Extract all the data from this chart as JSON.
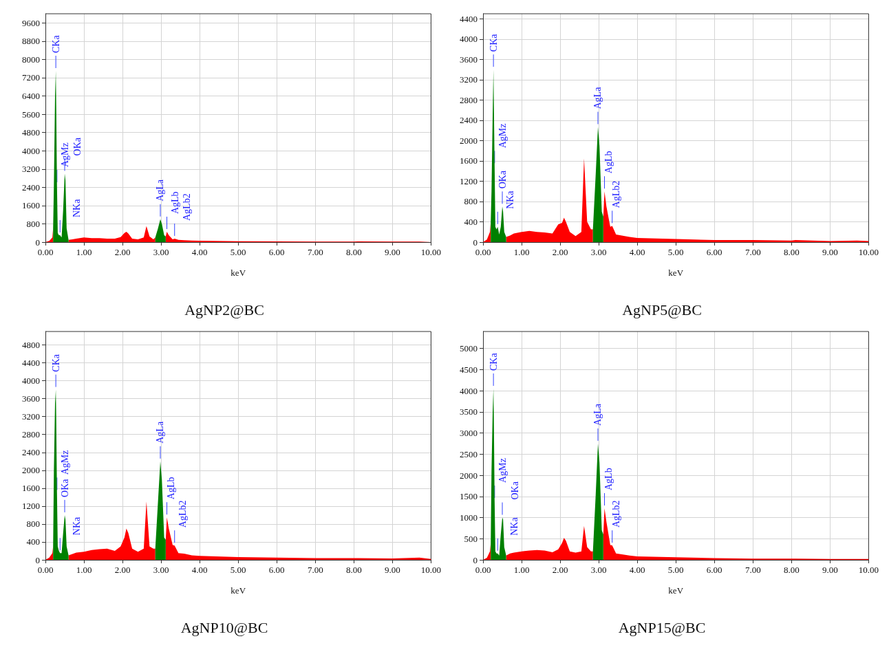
{
  "chart_data": [
    {
      "type": "area",
      "title": "AgNP2@BC",
      "xlabel": "keV",
      "grid": true,
      "x": [
        0,
        0.1,
        0.18,
        0.2,
        0.22,
        0.25,
        0.27,
        0.28,
        0.3,
        0.32,
        0.35,
        0.38,
        0.42,
        0.46,
        0.5,
        0.52,
        0.55,
        0.6,
        0.7,
        0.8,
        1.0,
        1.2,
        1.4,
        1.6,
        1.8,
        1.95,
        2.05,
        2.1,
        2.15,
        2.25,
        2.4,
        2.55,
        2.62,
        2.7,
        2.8,
        2.85,
        2.92,
        2.98,
        3.02,
        3.08,
        3.12,
        3.15,
        3.2,
        3.3,
        3.35,
        3.45,
        3.6,
        3.8,
        4.0,
        5.0,
        6.0,
        7.0,
        8.0,
        8.1,
        9.0,
        9.7,
        10.0
      ],
      "series": [
        {
          "color": "#ff0000",
          "values": [
            0,
            50,
            200,
            600,
            null,
            null,
            null,
            null,
            null,
            null,
            null,
            null,
            null,
            null,
            null,
            null,
            null,
            100,
            120,
            150,
            200,
            170,
            170,
            150,
            150,
            220,
            400,
            450,
            380,
            150,
            120,
            200,
            700,
            250,
            120,
            200,
            null,
            null,
            null,
            null,
            250,
            450,
            300,
            120,
            150,
            100,
            80,
            70,
            60,
            40,
            30,
            20,
            20,
            30,
            20,
            20,
            0
          ]
        },
        {
          "color": "#008000",
          "values": [
            null,
            null,
            null,
            600,
            2500,
            6400,
            7500,
            6000,
            2500,
            400,
            300,
            300,
            200,
            1400,
            3000,
            2700,
            600,
            100,
            null,
            null,
            null,
            null,
            null,
            null,
            null,
            null,
            null,
            null,
            null,
            null,
            null,
            null,
            null,
            null,
            null,
            200,
            600,
            1000,
            800,
            300,
            250,
            null,
            null,
            null,
            null,
            null,
            null,
            null,
            null,
            null,
            null,
            null,
            null,
            null,
            null,
            null,
            null
          ]
        }
      ],
      "xlim": [
        0,
        10
      ],
      "xticks": [
        {
          "value": 0,
          "label": "0.00"
        },
        {
          "value": 1,
          "label": "1.00"
        },
        {
          "value": 2,
          "label": "2.00"
        },
        {
          "value": 3,
          "label": "3.00"
        },
        {
          "value": 4,
          "label": "4.00"
        },
        {
          "value": 5,
          "label": "5.00"
        },
        {
          "value": 6,
          "label": "6.00"
        },
        {
          "value": 7,
          "label": "7.00"
        },
        {
          "value": 8,
          "label": "8.00"
        },
        {
          "value": 9,
          "label": "9.00"
        },
        {
          "value": 10,
          "label": "10.00"
        }
      ],
      "ylim": [
        0,
        10000
      ],
      "yticks": [
        0,
        800,
        1600,
        2400,
        3200,
        4000,
        4800,
        5600,
        6400,
        7200,
        8000,
        8800,
        9600
      ],
      "annotations": [
        {
          "text": "CKa",
          "x": 0.27,
          "y": 7500
        },
        {
          "text": "AgMz",
          "x": 0.3,
          "y": 2500
        },
        {
          "text": "OKa",
          "x": 0.5,
          "y": 3000
        },
        {
          "text": "NKa",
          "x": 0.38,
          "y": 300
        },
        {
          "text": "AgLa",
          "x": 2.98,
          "y": 1000
        },
        {
          "text": "AgLb",
          "x": 3.15,
          "y": 450
        },
        {
          "text": "AgLb2",
          "x": 3.35,
          "y": 150
        }
      ]
    },
    {
      "type": "area",
      "title": "AgNP5@BC",
      "xlabel": "keV",
      "grid": true,
      "x": [
        0,
        0.1,
        0.18,
        0.2,
        0.22,
        0.25,
        0.27,
        0.28,
        0.3,
        0.32,
        0.35,
        0.38,
        0.42,
        0.46,
        0.5,
        0.52,
        0.55,
        0.6,
        0.7,
        0.8,
        1.0,
        1.2,
        1.4,
        1.6,
        1.8,
        1.95,
        2.05,
        2.1,
        2.15,
        2.25,
        2.4,
        2.55,
        2.62,
        2.7,
        2.8,
        2.85,
        2.92,
        2.98,
        3.02,
        3.08,
        3.12,
        3.15,
        3.2,
        3.3,
        3.35,
        3.45,
        3.6,
        3.8,
        4.0,
        5.0,
        6.0,
        7.0,
        8.0,
        8.1,
        9.0,
        9.7,
        10.0
      ],
      "series": [
        {
          "color": "#ff0000",
          "values": [
            0,
            50,
            200,
            400,
            null,
            null,
            null,
            null,
            null,
            null,
            null,
            null,
            null,
            null,
            null,
            null,
            null,
            100,
            130,
            170,
            200,
            220,
            200,
            190,
            170,
            350,
            380,
            480,
            400,
            200,
            120,
            200,
            1650,
            400,
            250,
            250,
            null,
            null,
            null,
            null,
            500,
            1000,
            700,
            300,
            320,
            150,
            130,
            100,
            80,
            60,
            40,
            40,
            30,
            40,
            20,
            30,
            20
          ]
        },
        {
          "color": "#008000",
          "values": [
            null,
            null,
            null,
            400,
            1000,
            2500,
            3400,
            2800,
            1500,
            300,
            250,
            300,
            150,
            300,
            700,
            600,
            200,
            100,
            null,
            null,
            null,
            null,
            null,
            null,
            null,
            null,
            null,
            null,
            null,
            null,
            null,
            null,
            null,
            null,
            null,
            250,
            1300,
            2270,
            1900,
            600,
            500,
            null,
            null,
            null,
            null,
            null,
            null,
            null,
            null,
            null,
            null,
            null,
            null,
            null,
            null,
            null,
            null
          ]
        }
      ],
      "xlim": [
        0,
        10
      ],
      "xticks": [
        {
          "value": 0,
          "label": "0.00"
        },
        {
          "value": 1,
          "label": "1.00"
        },
        {
          "value": 2,
          "label": "2.00"
        },
        {
          "value": 3,
          "label": "3.00"
        },
        {
          "value": 4,
          "label": "4.00"
        },
        {
          "value": 5,
          "label": "5.00"
        },
        {
          "value": 6,
          "label": "6.00"
        },
        {
          "value": 7,
          "label": "7.00"
        },
        {
          "value": 8,
          "label": "8.00"
        },
        {
          "value": 9,
          "label": "9.00"
        },
        {
          "value": 10,
          "label": "10.00"
        }
      ],
      "ylim": [
        0,
        4500
      ],
      "yticks": [
        0,
        400,
        800,
        1200,
        1600,
        2000,
        2400,
        2800,
        3200,
        3600,
        4000,
        4400
      ],
      "annotations": [
        {
          "text": "CKa",
          "x": 0.27,
          "y": 3400
        },
        {
          "text": "AgMz",
          "x": 0.3,
          "y": 1500
        },
        {
          "text": "OKa",
          "x": 0.5,
          "y": 700
        },
        {
          "text": "NKa",
          "x": 0.38,
          "y": 300
        },
        {
          "text": "AgLa",
          "x": 2.98,
          "y": 2270
        },
        {
          "text": "AgLb",
          "x": 3.15,
          "y": 1000
        },
        {
          "text": "AgLb2",
          "x": 3.35,
          "y": 320
        }
      ]
    },
    {
      "type": "area",
      "title": "AgNP10@BC",
      "xlabel": "keV",
      "grid": true,
      "x": [
        0,
        0.1,
        0.18,
        0.2,
        0.22,
        0.25,
        0.27,
        0.28,
        0.3,
        0.32,
        0.35,
        0.38,
        0.42,
        0.46,
        0.5,
        0.52,
        0.55,
        0.6,
        0.7,
        0.8,
        1.0,
        1.2,
        1.4,
        1.6,
        1.8,
        1.95,
        2.05,
        2.1,
        2.15,
        2.25,
        2.4,
        2.55,
        2.62,
        2.7,
        2.8,
        2.85,
        2.92,
        2.98,
        3.02,
        3.08,
        3.12,
        3.15,
        3.2,
        3.3,
        3.35,
        3.45,
        3.6,
        3.8,
        4.0,
        5.0,
        6.0,
        7.0,
        8.0,
        8.1,
        9.0,
        9.7,
        10.0
      ],
      "series": [
        {
          "color": "#ff0000",
          "values": [
            0,
            50,
            150,
            300,
            null,
            null,
            null,
            null,
            null,
            null,
            null,
            null,
            null,
            null,
            null,
            null,
            null,
            100,
            130,
            160,
            180,
            220,
            240,
            250,
            200,
            300,
            500,
            700,
            600,
            250,
            180,
            250,
            1300,
            300,
            250,
            250,
            null,
            null,
            null,
            null,
            450,
            950,
            700,
            330,
            320,
            150,
            140,
            100,
            90,
            60,
            50,
            40,
            40,
            40,
            30,
            50,
            20
          ]
        },
        {
          "color": "#008000",
          "values": [
            null,
            null,
            null,
            300,
            2000,
            3500,
            3800,
            3200,
            1500,
            300,
            200,
            150,
            150,
            600,
            1000,
            900,
            300,
            100,
            null,
            null,
            null,
            null,
            null,
            null,
            null,
            null,
            null,
            null,
            null,
            null,
            null,
            null,
            null,
            null,
            null,
            250,
            1300,
            2200,
            1800,
            500,
            450,
            null,
            null,
            null,
            null,
            null,
            null,
            null,
            null,
            null,
            null,
            null,
            null,
            null,
            null,
            null,
            null
          ]
        }
      ],
      "xlim": [
        0,
        10
      ],
      "xticks": [
        {
          "value": 0,
          "label": "0.00"
        },
        {
          "value": 1,
          "label": "1.00"
        },
        {
          "value": 2,
          "label": "2.00"
        },
        {
          "value": 3,
          "label": "3.00"
        },
        {
          "value": 4,
          "label": "4.00"
        },
        {
          "value": 5,
          "label": "5.00"
        },
        {
          "value": 6,
          "label": "6.00"
        },
        {
          "value": 7,
          "label": "7.00"
        },
        {
          "value": 8,
          "label": "8.00"
        },
        {
          "value": 9,
          "label": "9.00"
        },
        {
          "value": 10,
          "label": "10.00"
        }
      ],
      "ylim": [
        0,
        5100
      ],
      "yticks": [
        0,
        400,
        800,
        1200,
        1600,
        2000,
        2400,
        2800,
        3200,
        3600,
        4000,
        4400,
        4800
      ],
      "annotations": [
        {
          "text": "CKa",
          "x": 0.27,
          "y": 3800
        },
        {
          "text": "AgMz",
          "x": 0.3,
          "y": 1500
        },
        {
          "text": "OKa",
          "x": 0.5,
          "y": 1000
        },
        {
          "text": "NKa",
          "x": 0.38,
          "y": 150
        },
        {
          "text": "AgLa",
          "x": 2.98,
          "y": 2200
        },
        {
          "text": "AgLb",
          "x": 3.15,
          "y": 950
        },
        {
          "text": "AgLb2",
          "x": 3.35,
          "y": 320
        }
      ]
    },
    {
      "type": "area",
      "title": "AgNP15@BC",
      "xlabel": "keV",
      "grid": true,
      "x": [
        0,
        0.1,
        0.18,
        0.2,
        0.22,
        0.25,
        0.27,
        0.28,
        0.3,
        0.32,
        0.35,
        0.38,
        0.42,
        0.46,
        0.5,
        0.52,
        0.55,
        0.6,
        0.7,
        0.8,
        1.0,
        1.2,
        1.4,
        1.6,
        1.8,
        1.95,
        2.05,
        2.1,
        2.15,
        2.25,
        2.4,
        2.55,
        2.62,
        2.7,
        2.8,
        2.85,
        2.92,
        2.98,
        3.02,
        3.08,
        3.12,
        3.15,
        3.2,
        3.3,
        3.35,
        3.45,
        3.6,
        3.8,
        4.0,
        5.0,
        6.0,
        7.0,
        8.0,
        8.1,
        9.0,
        9.7,
        10.0
      ],
      "series": [
        {
          "color": "#ff0000",
          "values": [
            0,
            50,
            200,
            400,
            null,
            null,
            null,
            null,
            null,
            null,
            null,
            null,
            null,
            null,
            null,
            null,
            null,
            100,
            150,
            170,
            200,
            220,
            230,
            220,
            180,
            250,
            400,
            520,
            450,
            200,
            170,
            200,
            800,
            300,
            200,
            200,
            null,
            null,
            null,
            null,
            600,
            1220,
            900,
            350,
            340,
            150,
            130,
            100,
            80,
            60,
            40,
            30,
            30,
            30,
            20,
            20,
            20
          ]
        },
        {
          "color": "#008000",
          "values": [
            null,
            null,
            null,
            400,
            2100,
            3500,
            4050,
            3400,
            1400,
            200,
            150,
            150,
            100,
            600,
            1000,
            950,
            300,
            100,
            null,
            null,
            null,
            null,
            null,
            null,
            null,
            null,
            null,
            null,
            null,
            null,
            null,
            null,
            null,
            null,
            null,
            200,
            1500,
            2750,
            2300,
            700,
            600,
            null,
            null,
            null,
            null,
            null,
            null,
            null,
            null,
            null,
            null,
            null,
            null,
            null,
            null,
            null,
            null
          ]
        }
      ],
      "xlim": [
        0,
        10
      ],
      "xticks": [
        {
          "value": 0,
          "label": "0.00"
        },
        {
          "value": 1,
          "label": "1.00"
        },
        {
          "value": 2,
          "label": "2.00"
        },
        {
          "value": 3,
          "label": "3.00"
        },
        {
          "value": 4,
          "label": "4.00"
        },
        {
          "value": 5,
          "label": "5.00"
        },
        {
          "value": 6,
          "label": "6.00"
        },
        {
          "value": 7,
          "label": "7.00"
        },
        {
          "value": 8,
          "label": "8.00"
        },
        {
          "value": 9,
          "label": "9.00"
        },
        {
          "value": 10,
          "label": "10.00"
        }
      ],
      "ylim": [
        0,
        5400
      ],
      "yticks": [
        0,
        500,
        1000,
        1500,
        2000,
        2500,
        3000,
        3500,
        4000,
        4500,
        5000
      ],
      "annotations": [
        {
          "text": "CKa",
          "x": 0.27,
          "y": 4050
        },
        {
          "text": "AgMz",
          "x": 0.3,
          "y": 1400
        },
        {
          "text": "OKa",
          "x": 0.5,
          "y": 1000
        },
        {
          "text": "NKa",
          "x": 0.38,
          "y": 150
        },
        {
          "text": "AgLa",
          "x": 2.98,
          "y": 2750
        },
        {
          "text": "AgLb",
          "x": 3.15,
          "y": 1220
        },
        {
          "text": "AgLb2",
          "x": 3.35,
          "y": 340
        }
      ]
    }
  ]
}
